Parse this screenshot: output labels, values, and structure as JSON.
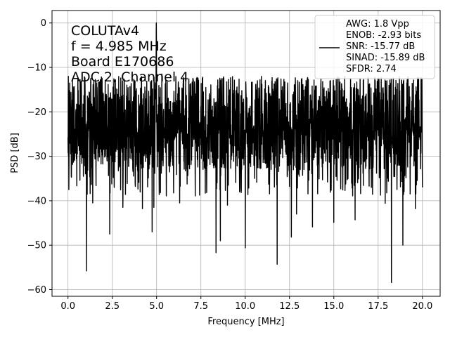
{
  "chart_data": {
    "type": "line",
    "title": "",
    "xlabel": "Frequency [MHz]",
    "ylabel": "PSD [dB]",
    "xlim": [
      -0.9,
      21.0
    ],
    "ylim": [
      -61.5,
      2.8
    ],
    "xticks": [
      0.0,
      2.5,
      5.0,
      7.5,
      10.0,
      12.5,
      15.0,
      17.5,
      20.0
    ],
    "xtick_labels": [
      "0.0",
      "2.5",
      "5.0",
      "7.5",
      "10.0",
      "12.5",
      "15.0",
      "17.5",
      "20.0"
    ],
    "yticks": [
      0,
      -10,
      -20,
      -30,
      -40,
      -50,
      -60
    ],
    "ytick_labels": [
      "0",
      "−10",
      "−20",
      "−30",
      "−40",
      "−50",
      "−60"
    ],
    "grid": true,
    "legend_position": "top-right",
    "annotation_lines": [
      "COLUTAv4",
      "f = 4.985 MHz",
      "Board E170686",
      "ADC 2, Channel 4"
    ],
    "legend_lines": [
      "AWG: 1.8 Vpp",
      "ENOB: -2.93 bits",
      "SNR: -15.77 dB",
      "SINAD: -15.89 dB",
      "SFDR: 2.74"
    ],
    "series": [
      {
        "color": "#000000",
        "x_start": 0.0,
        "x_end": 20.0,
        "noise_mean": -22,
        "noise_upper": -12,
        "noise_lower": -33,
        "peak_x": 4.985,
        "peak_y": 0,
        "dips": [
          {
            "x": 0.05,
            "y": -37.5
          },
          {
            "x": 1.05,
            "y": -55.8
          },
          {
            "x": 1.4,
            "y": -40.5
          },
          {
            "x": 2.35,
            "y": -47.5
          },
          {
            "x": 3.1,
            "y": -41.5
          },
          {
            "x": 4.2,
            "y": -41.8
          },
          {
            "x": 4.75,
            "y": -47.0
          },
          {
            "x": 4.85,
            "y": -41.5
          },
          {
            "x": 6.3,
            "y": -40.5
          },
          {
            "x": 8.35,
            "y": -51.7
          },
          {
            "x": 8.6,
            "y": -49.0
          },
          {
            "x": 9.0,
            "y": -41.0
          },
          {
            "x": 10.0,
            "y": -50.6
          },
          {
            "x": 11.8,
            "y": -54.3
          },
          {
            "x": 12.6,
            "y": -48.2
          },
          {
            "x": 12.9,
            "y": -43.0
          },
          {
            "x": 13.8,
            "y": -45.9
          },
          {
            "x": 15.0,
            "y": -44.9
          },
          {
            "x": 16.2,
            "y": -44.3
          },
          {
            "x": 17.9,
            "y": -40.6
          },
          {
            "x": 18.25,
            "y": -58.4
          },
          {
            "x": 18.9,
            "y": -50.0
          },
          {
            "x": 19.6,
            "y": -41.8
          },
          {
            "x": 20.0,
            "y": -37.0
          }
        ],
        "spikes": [
          {
            "x": 0.02,
            "y": -12.0
          },
          {
            "x": 0.1,
            "y": -13.5
          },
          {
            "x": 5.3,
            "y": -11.5
          },
          {
            "x": 13.5,
            "y": -12.5
          },
          {
            "x": 18.0,
            "y": -13.0
          }
        ]
      }
    ]
  }
}
